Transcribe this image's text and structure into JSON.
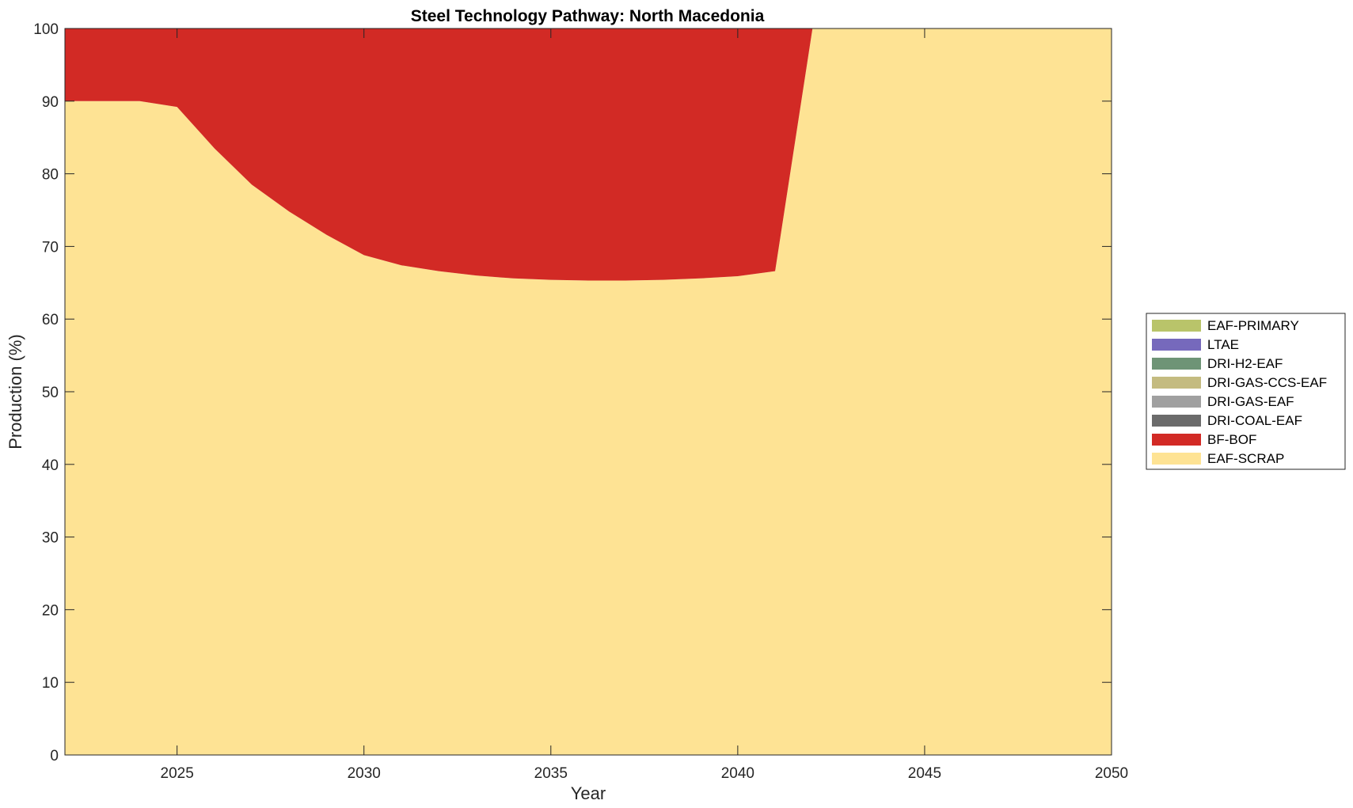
{
  "chart_data": {
    "type": "area",
    "stacked": true,
    "title": "Steel Technology Pathway: North Macedonia",
    "xlabel": "Year",
    "ylabel": "Production (%)",
    "xlim": [
      2022,
      2050
    ],
    "ylim": [
      0,
      100
    ],
    "xticks": [
      2025,
      2030,
      2035,
      2040,
      2045,
      2050
    ],
    "yticks": [
      0,
      10,
      20,
      30,
      40,
      50,
      60,
      70,
      80,
      90,
      100
    ],
    "grid": false,
    "legend_position": "right",
    "x": [
      2022,
      2023,
      2024,
      2025,
      2026,
      2027,
      2028,
      2029,
      2030,
      2031,
      2032,
      2033,
      2034,
      2035,
      2036,
      2037,
      2038,
      2039,
      2040,
      2041,
      2042,
      2043,
      2044,
      2045,
      2046,
      2047,
      2048,
      2049,
      2050
    ],
    "series": [
      {
        "name": "EAF-SCRAP",
        "color": "#FEE394",
        "values": [
          90,
          90,
          90,
          89.2,
          83.5,
          78.5,
          74.8,
          71.6,
          68.8,
          67.4,
          66.6,
          66.0,
          65.6,
          65.4,
          65.3,
          65.3,
          65.4,
          65.6,
          65.9,
          66.6,
          100,
          100,
          100,
          100,
          100,
          100,
          100,
          100,
          100
        ]
      },
      {
        "name": "BF-BOF",
        "color": "#D22A25",
        "values": [
          10,
          10,
          10,
          10.8,
          16.5,
          21.5,
          25.2,
          28.4,
          31.2,
          32.6,
          33.4,
          34.0,
          34.4,
          34.6,
          34.7,
          34.7,
          34.6,
          34.4,
          34.1,
          33.4,
          0,
          0,
          0,
          0,
          0,
          0,
          0,
          0,
          0
        ]
      },
      {
        "name": "DRI-COAL-EAF",
        "color": "#6B6B6B",
        "values": [
          0,
          0,
          0,
          0,
          0,
          0,
          0,
          0,
          0,
          0,
          0,
          0,
          0,
          0,
          0,
          0,
          0,
          0,
          0,
          0,
          0,
          0,
          0,
          0,
          0,
          0,
          0,
          0,
          0
        ]
      },
      {
        "name": "DRI-GAS-EAF",
        "color": "#A0A0A0",
        "values": [
          0,
          0,
          0,
          0,
          0,
          0,
          0,
          0,
          0,
          0,
          0,
          0,
          0,
          0,
          0,
          0,
          0,
          0,
          0,
          0,
          0,
          0,
          0,
          0,
          0,
          0,
          0,
          0,
          0
        ]
      },
      {
        "name": "DRI-GAS-CCS-EAF",
        "color": "#C4BB80",
        "values": [
          0,
          0,
          0,
          0,
          0,
          0,
          0,
          0,
          0,
          0,
          0,
          0,
          0,
          0,
          0,
          0,
          0,
          0,
          0,
          0,
          0,
          0,
          0,
          0,
          0,
          0,
          0,
          0,
          0
        ]
      },
      {
        "name": "DRI-H2-EAF",
        "color": "#6E9476",
        "values": [
          0,
          0,
          0,
          0,
          0,
          0,
          0,
          0,
          0,
          0,
          0,
          0,
          0,
          0,
          0,
          0,
          0,
          0,
          0,
          0,
          0,
          0,
          0,
          0,
          0,
          0,
          0,
          0,
          0
        ]
      },
      {
        "name": "LTAE",
        "color": "#7669BC",
        "values": [
          0,
          0,
          0,
          0,
          0,
          0,
          0,
          0,
          0,
          0,
          0,
          0,
          0,
          0,
          0,
          0,
          0,
          0,
          0,
          0,
          0,
          0,
          0,
          0,
          0,
          0,
          0,
          0,
          0
        ]
      },
      {
        "name": "EAF-PRIMARY",
        "color": "#B9C46A",
        "values": [
          0,
          0,
          0,
          0,
          0,
          0,
          0,
          0,
          0,
          0,
          0,
          0,
          0,
          0,
          0,
          0,
          0,
          0,
          0,
          0,
          0,
          0,
          0,
          0,
          0,
          0,
          0,
          0,
          0
        ]
      }
    ],
    "legend_order": [
      "EAF-PRIMARY",
      "LTAE",
      "DRI-H2-EAF",
      "DRI-GAS-CCS-EAF",
      "DRI-GAS-EAF",
      "DRI-COAL-EAF",
      "BF-BOF",
      "EAF-SCRAP"
    ]
  }
}
